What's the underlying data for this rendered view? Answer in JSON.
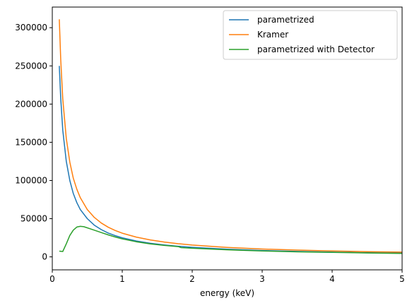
{
  "chart_data": {
    "type": "line",
    "title": "",
    "xlabel": "energy (keV)",
    "ylabel": "",
    "xlim": [
      0,
      5
    ],
    "ylim": [
      -17000,
      327000
    ],
    "grid": false,
    "legend_placement": "top-right",
    "x_ticks": [
      0,
      1,
      2,
      3,
      4,
      5
    ],
    "x_tick_labels": [
      "0",
      "1",
      "2",
      "3",
      "4",
      "5"
    ],
    "y_ticks": [
      0,
      50000,
      100000,
      150000,
      200000,
      250000,
      300000
    ],
    "y_tick_labels": [
      "0",
      "50000",
      "100000",
      "150000",
      "200000",
      "250000",
      "300000"
    ],
    "series": [
      {
        "name": "parametrized",
        "color": "#1f77b4",
        "points": [
          [
            0.1,
            250000
          ],
          [
            0.12,
            208000
          ],
          [
            0.15,
            166000
          ],
          [
            0.2,
            125000
          ],
          [
            0.25,
            100000
          ],
          [
            0.3,
            83000
          ],
          [
            0.35,
            71000
          ],
          [
            0.4,
            62000
          ],
          [
            0.5,
            50000
          ],
          [
            0.6,
            41500
          ],
          [
            0.7,
            35700
          ],
          [
            0.8,
            31200
          ],
          [
            0.9,
            27800
          ],
          [
            1.0,
            25000
          ],
          [
            1.2,
            20800
          ],
          [
            1.4,
            17800
          ],
          [
            1.6,
            15600
          ],
          [
            1.8,
            13900
          ],
          [
            2.0,
            12500
          ],
          [
            2.5,
            10000
          ],
          [
            3.0,
            8300
          ],
          [
            3.5,
            7100
          ],
          [
            4.0,
            6200
          ],
          [
            4.5,
            5500
          ],
          [
            5.0,
            5000
          ]
        ]
      },
      {
        "name": "Kramer",
        "color": "#ff7f0e",
        "points": [
          [
            0.1,
            311000
          ],
          [
            0.12,
            259000
          ],
          [
            0.15,
            207000
          ],
          [
            0.2,
            155000
          ],
          [
            0.25,
            124000
          ],
          [
            0.3,
            103000
          ],
          [
            0.35,
            88600
          ],
          [
            0.4,
            77500
          ],
          [
            0.5,
            62000
          ],
          [
            0.6,
            51700
          ],
          [
            0.7,
            44300
          ],
          [
            0.8,
            38800
          ],
          [
            0.9,
            34500
          ],
          [
            1.0,
            31000
          ],
          [
            1.2,
            25900
          ],
          [
            1.4,
            22200
          ],
          [
            1.6,
            19400
          ],
          [
            1.8,
            17200
          ],
          [
            2.0,
            15500
          ],
          [
            2.5,
            12400
          ],
          [
            3.0,
            10300
          ],
          [
            3.5,
            8900
          ],
          [
            4.0,
            7800
          ],
          [
            4.5,
            6900
          ],
          [
            5.0,
            6200
          ]
        ]
      },
      {
        "name": "parametrized with Detector",
        "color": "#2ca02c",
        "points": [
          [
            0.1,
            7500
          ],
          [
            0.15,
            7000
          ],
          [
            0.2,
            17000
          ],
          [
            0.25,
            28000
          ],
          [
            0.3,
            35000
          ],
          [
            0.35,
            39000
          ],
          [
            0.4,
            40000
          ],
          [
            0.45,
            39500
          ],
          [
            0.5,
            38000
          ],
          [
            0.6,
            35000
          ],
          [
            0.7,
            31800
          ],
          [
            0.8,
            28800
          ],
          [
            0.9,
            26000
          ],
          [
            1.0,
            23500
          ],
          [
            1.2,
            19800
          ],
          [
            1.4,
            17000
          ],
          [
            1.6,
            15000
          ],
          [
            1.8,
            13400
          ],
          [
            1.84,
            12100
          ],
          [
            2.0,
            11300
          ],
          [
            2.5,
            9300
          ],
          [
            3.0,
            7800
          ],
          [
            3.5,
            6600
          ],
          [
            4.0,
            5800
          ],
          [
            4.5,
            5100
          ],
          [
            5.0,
            4500
          ]
        ]
      }
    ]
  }
}
